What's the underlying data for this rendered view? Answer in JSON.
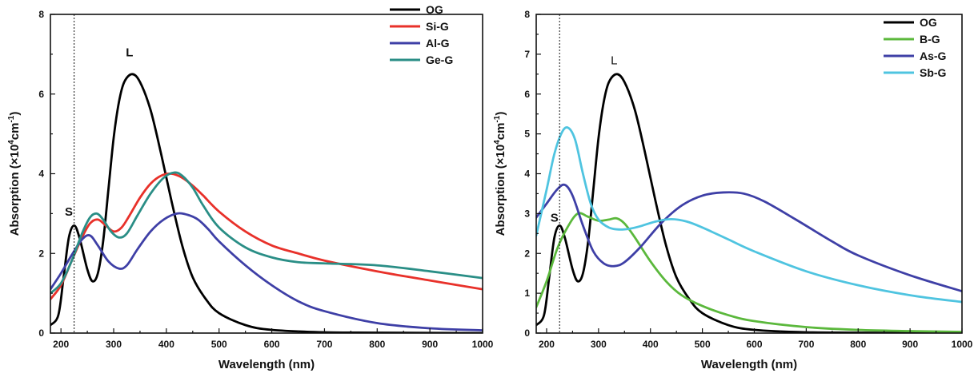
{
  "chart_data": [
    {
      "type": "line",
      "xlabel": "Wavelength (nm)",
      "ylabel_main": "Absorption (×10",
      "ylabel_sup1": "4",
      "ylabel_mid": "cm",
      "ylabel_sup2": "-1",
      "ylabel_end": ")",
      "xlim": [
        180,
        1000
      ],
      "ylim": [
        0,
        8
      ],
      "x_ticks": [
        "200",
        "300",
        "400",
        "500",
        "600",
        "700",
        "800",
        "900",
        "1000"
      ],
      "y_ticks": [
        "0",
        "2",
        "4",
        "6",
        "8"
      ],
      "reference_line_x": 225,
      "legend_position": "top-right",
      "annotations": [
        {
          "text": "S",
          "x": 215,
          "y": 2.95,
          "bold": true
        },
        {
          "text": "L",
          "x": 330,
          "y": 6.95,
          "bold": true
        }
      ],
      "series": [
        {
          "name": "OG",
          "color": "#000000",
          "points": [
            [
              180,
              0.2
            ],
            [
              195,
              0.45
            ],
            [
              205,
              1.4
            ],
            [
              215,
              2.4
            ],
            [
              225,
              2.7
            ],
            [
              235,
              2.4
            ],
            [
              250,
              1.6
            ],
            [
              260,
              1.3
            ],
            [
              270,
              1.5
            ],
            [
              280,
              2.3
            ],
            [
              290,
              3.6
            ],
            [
              300,
              4.9
            ],
            [
              310,
              5.8
            ],
            [
              320,
              6.3
            ],
            [
              335,
              6.5
            ],
            [
              350,
              6.3
            ],
            [
              370,
              5.6
            ],
            [
              390,
              4.5
            ],
            [
              410,
              3.3
            ],
            [
              430,
              2.2
            ],
            [
              450,
              1.4
            ],
            [
              475,
              0.85
            ],
            [
              500,
              0.5
            ],
            [
              550,
              0.2
            ],
            [
              600,
              0.08
            ],
            [
              700,
              0.02
            ],
            [
              800,
              0.01
            ],
            [
              1000,
              0.0
            ]
          ]
        },
        {
          "name": "Si-G",
          "color": "#e8312a",
          "points": [
            [
              180,
              0.85
            ],
            [
              200,
              1.2
            ],
            [
              220,
              1.8
            ],
            [
              240,
              2.4
            ],
            [
              255,
              2.75
            ],
            [
              270,
              2.85
            ],
            [
              285,
              2.7
            ],
            [
              300,
              2.55
            ],
            [
              315,
              2.65
            ],
            [
              330,
              2.95
            ],
            [
              350,
              3.4
            ],
            [
              370,
              3.75
            ],
            [
              390,
              3.95
            ],
            [
              410,
              4.0
            ],
            [
              430,
              3.9
            ],
            [
              450,
              3.7
            ],
            [
              470,
              3.45
            ],
            [
              500,
              3.05
            ],
            [
              550,
              2.55
            ],
            [
              600,
              2.2
            ],
            [
              650,
              2.0
            ],
            [
              700,
              1.82
            ],
            [
              800,
              1.55
            ],
            [
              900,
              1.32
            ],
            [
              1000,
              1.1
            ]
          ]
        },
        {
          "name": "Al-G",
          "color": "#3e3fa6",
          "points": [
            [
              180,
              1.1
            ],
            [
              200,
              1.5
            ],
            [
              220,
              1.95
            ],
            [
              240,
              2.35
            ],
            [
              255,
              2.45
            ],
            [
              270,
              2.2
            ],
            [
              290,
              1.8
            ],
            [
              310,
              1.62
            ],
            [
              325,
              1.7
            ],
            [
              345,
              2.1
            ],
            [
              370,
              2.55
            ],
            [
              395,
              2.85
            ],
            [
              420,
              3.0
            ],
            [
              440,
              2.97
            ],
            [
              460,
              2.85
            ],
            [
              480,
              2.6
            ],
            [
              500,
              2.3
            ],
            [
              550,
              1.7
            ],
            [
              600,
              1.2
            ],
            [
              650,
              0.8
            ],
            [
              700,
              0.55
            ],
            [
              800,
              0.25
            ],
            [
              900,
              0.12
            ],
            [
              1000,
              0.07
            ]
          ]
        },
        {
          "name": "Ge-G",
          "color": "#2a8e86",
          "points": [
            [
              180,
              1.0
            ],
            [
              200,
              1.25
            ],
            [
              220,
              1.8
            ],
            [
              240,
              2.5
            ],
            [
              255,
              2.9
            ],
            [
              268,
              3.0
            ],
            [
              280,
              2.85
            ],
            [
              295,
              2.55
            ],
            [
              310,
              2.4
            ],
            [
              325,
              2.5
            ],
            [
              345,
              2.95
            ],
            [
              370,
              3.5
            ],
            [
              395,
              3.9
            ],
            [
              415,
              4.03
            ],
            [
              430,
              3.95
            ],
            [
              450,
              3.65
            ],
            [
              470,
              3.2
            ],
            [
              500,
              2.65
            ],
            [
              550,
              2.15
            ],
            [
              600,
              1.9
            ],
            [
              650,
              1.78
            ],
            [
              700,
              1.75
            ],
            [
              800,
              1.7
            ],
            [
              900,
              1.55
            ],
            [
              1000,
              1.38
            ]
          ]
        }
      ]
    },
    {
      "type": "line",
      "xlabel": "Wavelength (nm)",
      "ylabel_main": "Absorption (×10",
      "ylabel_sup1": "4",
      "ylabel_mid": "cm",
      "ylabel_sup2": "-1",
      "ylabel_end": ")",
      "xlim": [
        180,
        1000
      ],
      "ylim": [
        0,
        8
      ],
      "x_ticks": [
        "200",
        "300",
        "400",
        "500",
        "600",
        "700",
        "800",
        "900",
        "1000"
      ],
      "y_ticks": [
        "0",
        "1",
        "2",
        "3",
        "4",
        "5",
        "6",
        "7",
        "8"
      ],
      "reference_line_x": 225,
      "legend_position": "top-right",
      "annotations": [
        {
          "text": "S",
          "x": 215,
          "y": 2.8,
          "bold": true
        },
        {
          "text": "L",
          "x": 330,
          "y": 6.75,
          "bold": false
        }
      ],
      "series": [
        {
          "name": "OG",
          "color": "#000000",
          "points": [
            [
              180,
              0.2
            ],
            [
              195,
              0.45
            ],
            [
              205,
              1.4
            ],
            [
              215,
              2.4
            ],
            [
              225,
              2.7
            ],
            [
              235,
              2.4
            ],
            [
              250,
              1.6
            ],
            [
              260,
              1.3
            ],
            [
              270,
              1.5
            ],
            [
              280,
              2.3
            ],
            [
              290,
              3.6
            ],
            [
              300,
              4.9
            ],
            [
              310,
              5.8
            ],
            [
              320,
              6.3
            ],
            [
              335,
              6.5
            ],
            [
              350,
              6.3
            ],
            [
              370,
              5.6
            ],
            [
              390,
              4.5
            ],
            [
              410,
              3.3
            ],
            [
              430,
              2.2
            ],
            [
              450,
              1.4
            ],
            [
              475,
              0.85
            ],
            [
              500,
              0.5
            ],
            [
              550,
              0.2
            ],
            [
              600,
              0.08
            ],
            [
              700,
              0.02
            ],
            [
              800,
              0.01
            ],
            [
              1000,
              0.0
            ]
          ]
        },
        {
          "name": "B-G",
          "color": "#5bb83c",
          "points": [
            [
              180,
              0.65
            ],
            [
              200,
              1.3
            ],
            [
              220,
              2.1
            ],
            [
              240,
              2.65
            ],
            [
              260,
              3.0
            ],
            [
              280,
              2.92
            ],
            [
              300,
              2.82
            ],
            [
              320,
              2.85
            ],
            [
              335,
              2.88
            ],
            [
              350,
              2.75
            ],
            [
              370,
              2.4
            ],
            [
              400,
              1.8
            ],
            [
              430,
              1.3
            ],
            [
              460,
              0.95
            ],
            [
              500,
              0.68
            ],
            [
              550,
              0.45
            ],
            [
              600,
              0.3
            ],
            [
              700,
              0.15
            ],
            [
              800,
              0.08
            ],
            [
              900,
              0.05
            ],
            [
              1000,
              0.03
            ]
          ]
        },
        {
          "name": "As-G",
          "color": "#3e3fa6",
          "points": [
            [
              180,
              2.9
            ],
            [
              200,
              3.25
            ],
            [
              220,
              3.6
            ],
            [
              235,
              3.72
            ],
            [
              250,
              3.45
            ],
            [
              270,
              2.7
            ],
            [
              290,
              2.05
            ],
            [
              310,
              1.75
            ],
            [
              330,
              1.68
            ],
            [
              350,
              1.78
            ],
            [
              380,
              2.15
            ],
            [
              420,
              2.75
            ],
            [
              460,
              3.2
            ],
            [
              500,
              3.45
            ],
            [
              540,
              3.53
            ],
            [
              580,
              3.5
            ],
            [
              620,
              3.3
            ],
            [
              680,
              2.85
            ],
            [
              750,
              2.3
            ],
            [
              800,
              1.95
            ],
            [
              900,
              1.45
            ],
            [
              1000,
              1.05
            ]
          ]
        },
        {
          "name": "Sb-G",
          "color": "#4fc4e0",
          "points": [
            [
              180,
              2.45
            ],
            [
              200,
              3.6
            ],
            [
              215,
              4.5
            ],
            [
              230,
              5.05
            ],
            [
              242,
              5.15
            ],
            [
              255,
              4.85
            ],
            [
              270,
              4.0
            ],
            [
              285,
              3.25
            ],
            [
              300,
              2.85
            ],
            [
              320,
              2.65
            ],
            [
              340,
              2.6
            ],
            [
              360,
              2.62
            ],
            [
              380,
              2.68
            ],
            [
              410,
              2.8
            ],
            [
              440,
              2.86
            ],
            [
              470,
              2.8
            ],
            [
              500,
              2.65
            ],
            [
              550,
              2.35
            ],
            [
              600,
              2.05
            ],
            [
              700,
              1.55
            ],
            [
              800,
              1.2
            ],
            [
              900,
              0.95
            ],
            [
              1000,
              0.78
            ]
          ]
        }
      ]
    }
  ]
}
